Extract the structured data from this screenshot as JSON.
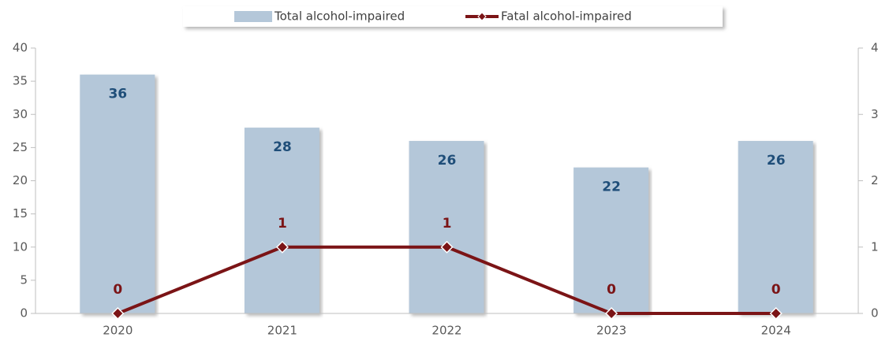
{
  "chart_data": {
    "type": "bar",
    "categories": [
      "2020",
      "2021",
      "2022",
      "2023",
      "2024"
    ],
    "series": [
      {
        "name": "Total alcohol-impaired",
        "color": "#b4c7d9",
        "values": [
          36,
          28,
          26,
          22,
          26
        ]
      },
      {
        "name": "Fatal alcohol-impaired",
        "color": "#7b1416",
        "values": [
          0,
          1,
          1,
          0,
          0
        ],
        "axis": "y2",
        "type": "line"
      }
    ],
    "ylim": [
      0,
      40
    ],
    "yticks": [
      0,
      5,
      10,
      15,
      20,
      25,
      30,
      35,
      40
    ],
    "y2lim": [
      0,
      4
    ],
    "y2ticks": [
      0,
      1,
      2,
      3,
      4
    ],
    "legend": "top"
  }
}
